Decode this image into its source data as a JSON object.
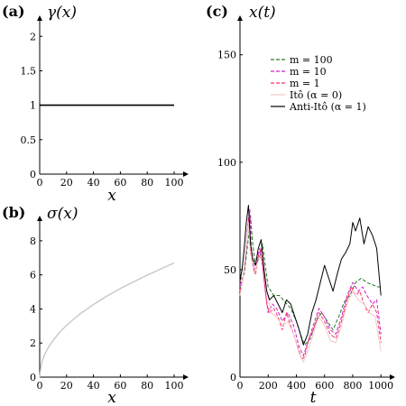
{
  "chart_data": [
    {
      "panel_label": "(a)",
      "type": "line",
      "ylabel": "γ(x)",
      "xlabel": "x",
      "xlim": [
        0,
        100
      ],
      "ylim": [
        0,
        2.2
      ],
      "x_ticks": [
        "0",
        "20",
        "40",
        "60",
        "80",
        "100"
      ],
      "y_ticks": [
        "0",
        "0.5",
        "1",
        "1.5",
        "2"
      ],
      "x_tick_values": [
        0,
        20,
        40,
        60,
        80,
        100
      ],
      "y_tick_values": [
        0,
        0.5,
        1,
        1.5,
        2
      ],
      "series": [
        {
          "color": "#000000",
          "x": [
            0,
            100
          ],
          "y": [
            1,
            1
          ]
        }
      ]
    },
    {
      "panel_label": "(b)",
      "type": "line",
      "ylabel": "σ(x)",
      "xlabel": "x",
      "xlim": [
        0,
        100
      ],
      "ylim": [
        0,
        9
      ],
      "x_ticks": [
        "0",
        "20",
        "40",
        "60",
        "80",
        "100"
      ],
      "y_ticks": [
        "0",
        "2",
        "4",
        "6",
        "8"
      ],
      "x_tick_values": [
        0,
        20,
        40,
        60,
        80,
        100
      ],
      "y_tick_values": [
        0,
        2,
        4,
        6,
        8
      ],
      "series": [
        {
          "color": "#c8c8c8",
          "x": [
            0,
            1,
            2,
            4,
            6,
            8,
            10,
            15,
            20,
            25,
            30,
            40,
            50,
            60,
            70,
            80,
            90,
            100
          ],
          "y": [
            0,
            0.7,
            0.98,
            1.38,
            1.68,
            1.94,
            2.16,
            2.64,
            3.04,
            3.39,
            3.71,
            4.26,
            4.76,
            5.2,
            5.6,
            5.98,
            6.35,
            6.7
          ]
        }
      ]
    },
    {
      "panel_label": "(c)",
      "type": "line",
      "ylabel": "x(t)",
      "xlabel": "t",
      "xlim": [
        0,
        1050
      ],
      "ylim": [
        0,
        165
      ],
      "x_ticks": [
        "0",
        "200",
        "400",
        "600",
        "800",
        "1000"
      ],
      "y_ticks": [
        "0",
        "50",
        "100",
        "150"
      ],
      "x_tick_values": [
        0,
        200,
        400,
        600,
        800,
        1000
      ],
      "y_tick_values": [
        0,
        50,
        100,
        150
      ],
      "legend_position": "upper-right",
      "series": [
        {
          "name": "m = 100",
          "color": "#2a7a2a",
          "dash": "dashed",
          "x": [
            0,
            30,
            60,
            75,
            90,
            110,
            140,
            160,
            180,
            200,
            240,
            280,
            320,
            360,
            400,
            440,
            460,
            500,
            540,
            580,
            620,
            660,
            700,
            740,
            780,
            820,
            860,
            900,
            940,
            980,
            1000
          ],
          "y": [
            45,
            48,
            65,
            75,
            62,
            52,
            56,
            62,
            52,
            42,
            38,
            38,
            35,
            32,
            26,
            18,
            15,
            18,
            26,
            30,
            26,
            22,
            28,
            35,
            38,
            44,
            46,
            44,
            43,
            42,
            42
          ]
        },
        {
          "name": "m = 10",
          "color": "#d01fd0",
          "dash": "dashed",
          "x": [
            0,
            20,
            40,
            55,
            70,
            80,
            100,
            120,
            140,
            160,
            180,
            200,
            230,
            260,
            300,
            340,
            380,
            420,
            450,
            480,
            520,
            560,
            600,
            640,
            680,
            720,
            760,
            800,
            840,
            870,
            900,
            940,
            970,
            1000
          ],
          "y": [
            43,
            46,
            55,
            70,
            78,
            60,
            50,
            54,
            60,
            52,
            40,
            30,
            34,
            32,
            26,
            30,
            24,
            14,
            10,
            16,
            24,
            32,
            28,
            22,
            20,
            28,
            38,
            44,
            40,
            42,
            38,
            34,
            36,
            20
          ]
        },
        {
          "name": "m = 1",
          "color": "#ff3060",
          "dash": "dashed",
          "x": [
            0,
            15,
            30,
            45,
            60,
            75,
            90,
            110,
            130,
            150,
            170,
            190,
            210,
            240,
            270,
            300,
            330,
            360,
            390,
            420,
            440,
            460,
            490,
            520,
            560,
            600,
            640,
            680,
            720,
            760,
            790,
            820,
            850,
            880,
            910,
            940,
            970,
            1000
          ],
          "y": [
            40,
            44,
            50,
            62,
            74,
            58,
            52,
            48,
            56,
            60,
            46,
            34,
            30,
            32,
            28,
            22,
            30,
            24,
            18,
            12,
            8,
            10,
            18,
            22,
            30,
            26,
            20,
            18,
            26,
            36,
            42,
            38,
            40,
            34,
            30,
            34,
            30,
            16
          ]
        },
        {
          "name": "Itô (α = 0)",
          "color": "#f2c8c8",
          "dash": "solid",
          "x": [
            0,
            20,
            40,
            60,
            80,
            100,
            130,
            160,
            190,
            220,
            260,
            300,
            340,
            380,
            420,
            450,
            480,
            520,
            560,
            600,
            640,
            680,
            720,
            760,
            800,
            840,
            880,
            920,
            960,
            1000
          ],
          "y": [
            38,
            45,
            58,
            72,
            56,
            48,
            54,
            58,
            40,
            30,
            28,
            24,
            26,
            20,
            11,
            7,
            12,
            20,
            28,
            24,
            17,
            16,
            24,
            34,
            40,
            36,
            34,
            30,
            28,
            12
          ]
        },
        {
          "name": "Anti-Itô (α = 1)",
          "color": "#000000",
          "dash": "solid",
          "x": [
            0,
            15,
            30,
            45,
            60,
            75,
            90,
            110,
            130,
            150,
            170,
            190,
            210,
            240,
            270,
            300,
            330,
            360,
            390,
            420,
            450,
            480,
            510,
            540,
            570,
            600,
            630,
            660,
            690,
            720,
            750,
            780,
            800,
            820,
            850,
            880,
            910,
            940,
            970,
            1000
          ],
          "y": [
            45,
            50,
            60,
            72,
            80,
            62,
            55,
            52,
            60,
            64,
            50,
            40,
            36,
            38,
            34,
            30,
            36,
            34,
            28,
            22,
            15,
            20,
            30,
            36,
            44,
            52,
            46,
            40,
            48,
            55,
            58,
            62,
            72,
            68,
            74,
            62,
            70,
            66,
            60,
            38
          ]
        }
      ]
    }
  ]
}
